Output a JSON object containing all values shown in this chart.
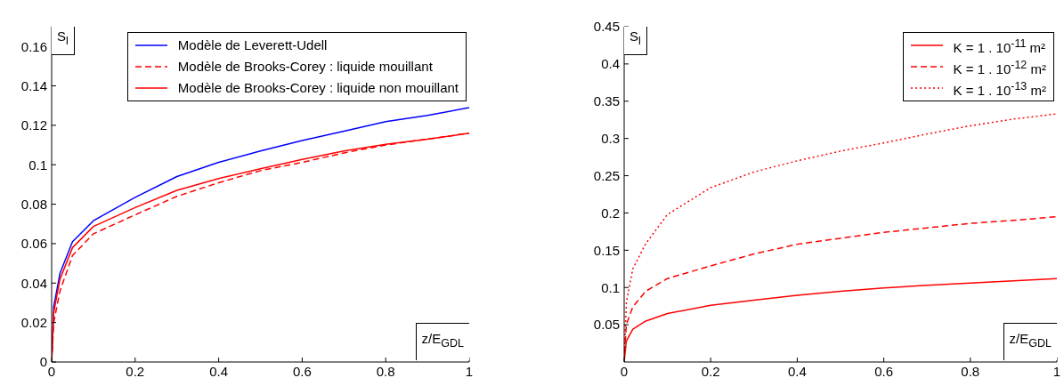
{
  "chart_data": [
    {
      "type": "line",
      "xlabel": "z/E$_{GDL}$",
      "ylabel": "S$_{l}$",
      "x": [
        0,
        0.005,
        0.02,
        0.05,
        0.1,
        0.2,
        0.3,
        0.4,
        0.5,
        0.6,
        0.7,
        0.8,
        0.9,
        1
      ],
      "xlim": [
        0,
        1
      ],
      "xticks": [
        0,
        0.2,
        0.4,
        0.6,
        0.8,
        1
      ],
      "ylim": [
        0,
        0.17
      ],
      "yticks": [
        0,
        0.02,
        0.04,
        0.06,
        0.08,
        0.1,
        0.12,
        0.14,
        0.16
      ],
      "legend": "top right",
      "grid": false,
      "marker": "none",
      "series": [
        {
          "name": "Modèle de Leverett-Udell",
          "color": "#0000ff",
          "line_style": "solid",
          "values": [
            0,
            0.028,
            0.045,
            0.061,
            0.0716,
            0.0835,
            0.094,
            0.1012,
            0.107,
            0.1123,
            0.117,
            0.1219,
            0.125,
            0.129
          ]
        },
        {
          "name": "Modèle de Brooks-Corey : liquide mouillant",
          "color": "#ff0000",
          "line_style": "dashed",
          "values": [
            0,
            0.02,
            0.036,
            0.054,
            0.065,
            0.0746,
            0.084,
            0.0909,
            0.097,
            0.1012,
            0.106,
            0.11,
            0.113,
            0.116
          ]
        },
        {
          "name": "Modèle de Brooks-Corey : liquide non mouillant",
          "color": "#ff0000",
          "line_style": "solid",
          "values": [
            0,
            0.025,
            0.042,
            0.058,
            0.0687,
            0.0783,
            0.087,
            0.093,
            0.098,
            0.1027,
            0.107,
            0.1104,
            0.113,
            0.116
          ]
        }
      ]
    },
    {
      "type": "line",
      "xlabel": "z/E$_{GDL}$",
      "ylabel": "S$_{l}$",
      "x": [
        0,
        0.005,
        0.02,
        0.05,
        0.1,
        0.2,
        0.3,
        0.4,
        0.5,
        0.6,
        0.7,
        0.8,
        0.9,
        1
      ],
      "xlim": [
        0,
        1
      ],
      "xticks": [
        0,
        0.2,
        0.4,
        0.6,
        0.8,
        1
      ],
      "ylim": [
        0,
        0.45
      ],
      "yticks": [
        0.05,
        0.1,
        0.15,
        0.2,
        0.25,
        0.3,
        0.35,
        0.4,
        0.45
      ],
      "legend": "top right",
      "grid": false,
      "marker": "none",
      "series": [
        {
          "name": "K = 1 . 10$^{-11}$ m²",
          "color": "#ff0000",
          "line_style": "solid",
          "values": [
            0,
            0.028,
            0.044,
            0.055,
            0.065,
            0.076,
            0.083,
            0.0896,
            0.095,
            0.0994,
            0.103,
            0.106,
            0.109,
            0.112
          ]
        },
        {
          "name": "K = 1 . 10$^{-12}$ m²",
          "color": "#ff0000",
          "line_style": "dashed",
          "values": [
            0,
            0.05,
            0.074,
            0.095,
            0.112,
            0.129,
            0.145,
            0.158,
            0.166,
            0.174,
            0.18,
            0.186,
            0.19,
            0.195
          ]
        },
        {
          "name": "K = 1 . 10$^{-13}$ m²",
          "color": "#ff0000",
          "line_style": "dotted",
          "values": [
            0,
            0.08,
            0.125,
            0.159,
            0.198,
            0.234,
            0.255,
            0.27,
            0.283,
            0.294,
            0.306,
            0.317,
            0.326,
            0.333
          ]
        }
      ]
    }
  ]
}
